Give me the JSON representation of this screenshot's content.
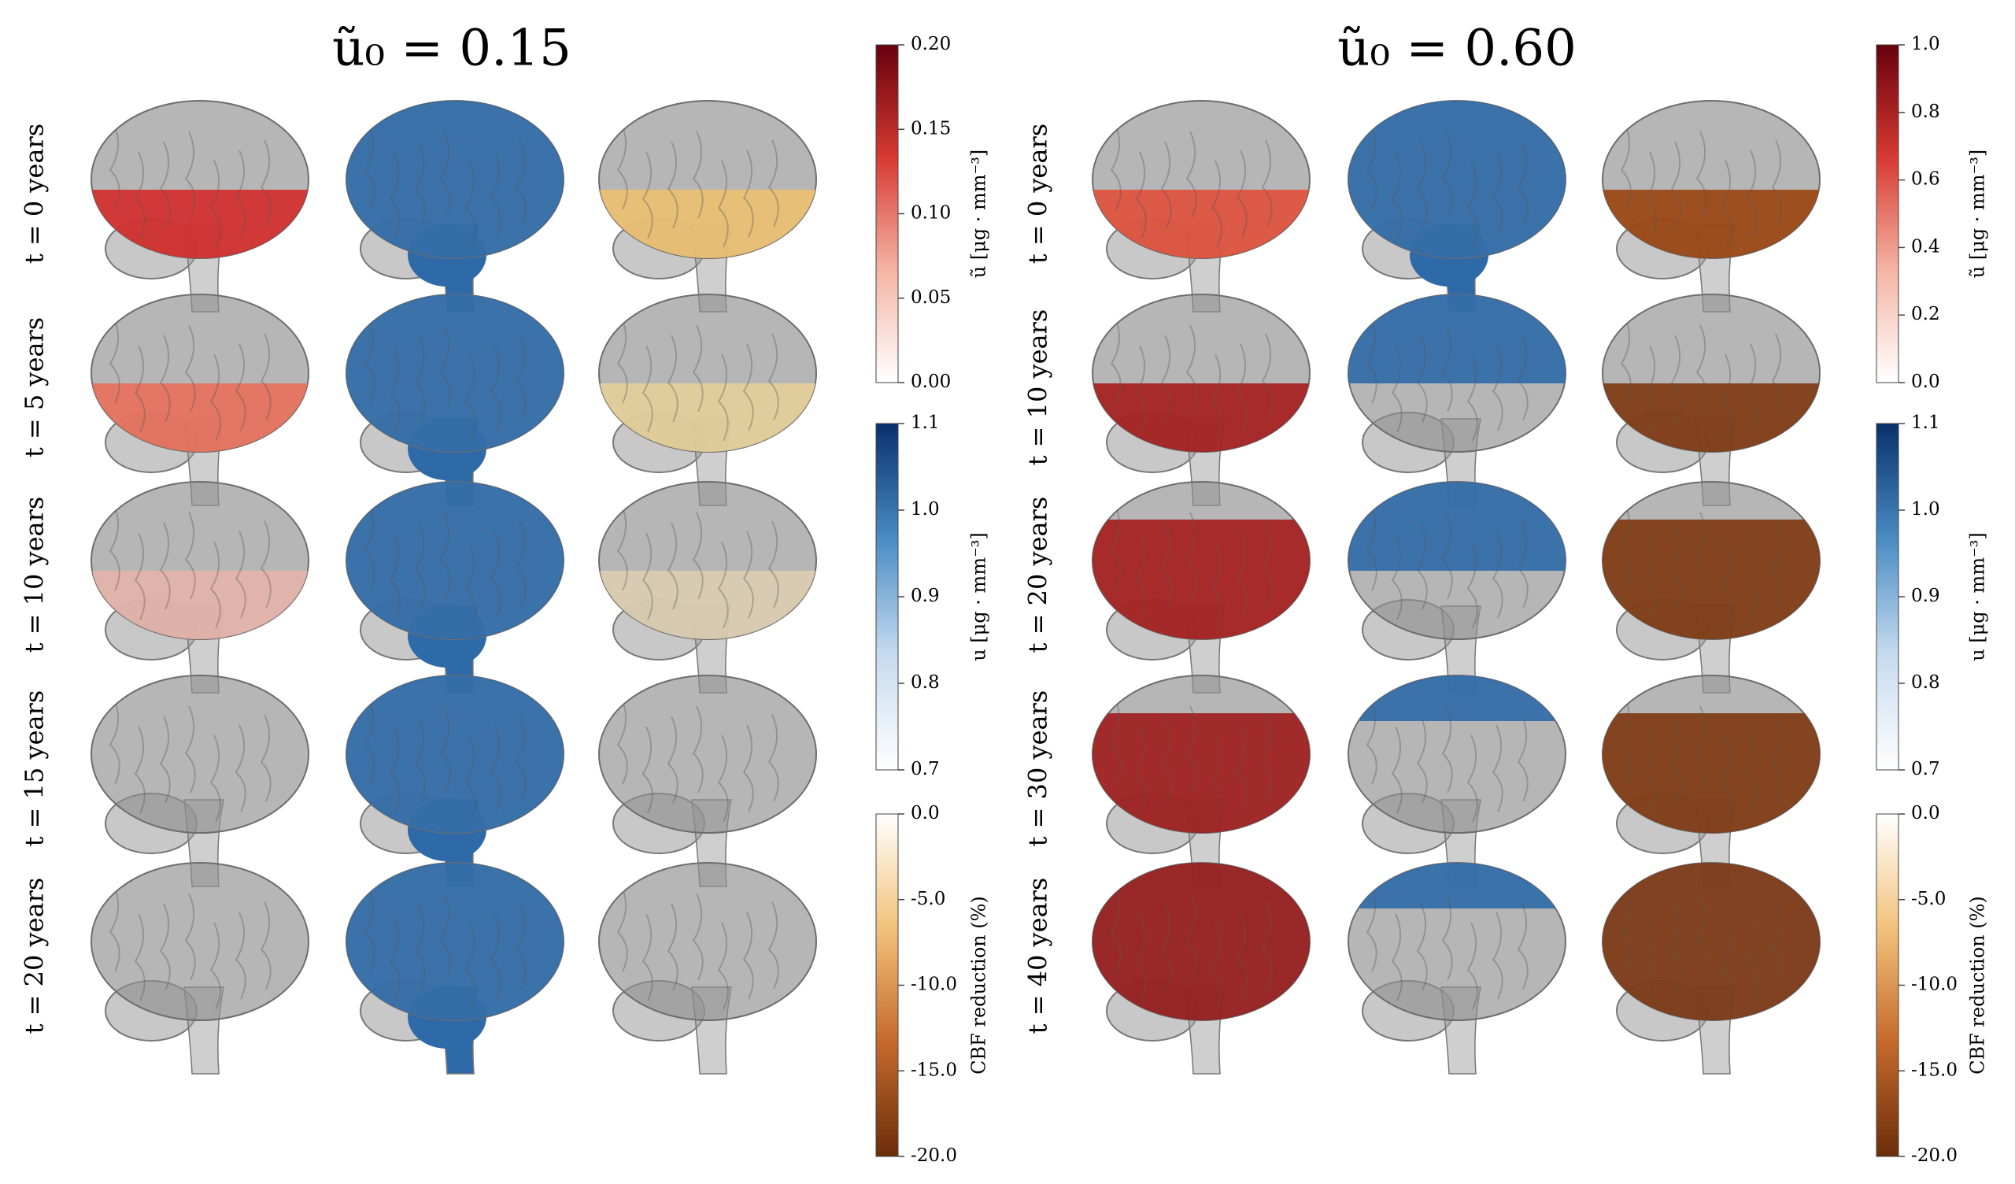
{
  "panels": [
    {
      "title": "ũ₀ = 0.15",
      "rows": [
        {
          "label": "t = 0 years",
          "cells": [
            {
              "color": "#d42a2a",
              "region": "lower"
            },
            {
              "color": "#2f6aa8",
              "region": "full"
            },
            {
              "color": "#ecc070",
              "region": "lower"
            }
          ]
        },
        {
          "label": "t = 5 years",
          "cells": [
            {
              "color": "#e8705a",
              "region": "lower"
            },
            {
              "color": "#2f6aa8",
              "region": "full"
            },
            {
              "color": "#e6cf98",
              "region": "lower"
            }
          ]
        },
        {
          "label": "t = 10 years",
          "cells": [
            {
              "color": "#e4b4aa",
              "region": "lower"
            },
            {
              "color": "#2f6aa8",
              "region": "full"
            },
            {
              "color": "#dccdb0",
              "region": "lower"
            }
          ]
        },
        {
          "label": "t = 15 years",
          "cells": [
            {
              "color": "#8a8a8a",
              "region": "none"
            },
            {
              "color": "#2f6aa8",
              "region": "full"
            },
            {
              "color": "#8a8a8a",
              "region": "none"
            }
          ]
        },
        {
          "label": "t = 20 years",
          "cells": [
            {
              "color": "#8a8a8a",
              "region": "none"
            },
            {
              "color": "#2f6aa8",
              "region": "full"
            },
            {
              "color": "#8a8a8a",
              "region": "none"
            }
          ]
        }
      ],
      "colorbars": [
        {
          "label": "ũ [μg · mm⁻³]",
          "lim": [
            0,
            0.2
          ],
          "colors": [
            "#ffffff",
            "#f4b4a4",
            "#d73a32",
            "#67000d"
          ],
          "ticks": [
            {
              "value": 0,
              "label": "0.00"
            },
            0.05,
            {
              "value": 0.1,
              "label": "0.10"
            },
            0.15,
            {
              "value": 0.2,
              "label": "0.20"
            }
          ]
        },
        {
          "label": "u [μg · mm⁻³]",
          "lim": [
            0.7,
            1.1
          ],
          "colors": [
            "#ffffff",
            "#c6dbef",
            "#4a8cc4",
            "#08306b"
          ],
          "ticks": [
            0.7,
            0.8,
            0.9,
            {
              "value": 1,
              "label": "1.0"
            },
            1.1
          ]
        },
        {
          "label": "CBF reduction (%)",
          "lim": [
            -20,
            0
          ],
          "colors": [
            "#6b2d0a",
            "#c56a2c",
            "#f2c27a",
            "#ffffff"
          ],
          "ticks": [
            {
              "value": -20,
              "label": "-20.0"
            },
            {
              "value": -15,
              "label": "-15.0"
            },
            {
              "value": -10,
              "label": "-10.0"
            },
            {
              "value": -5,
              "label": "-5.0"
            },
            {
              "value": 0,
              "label": "0.0"
            }
          ]
        }
      ]
    },
    {
      "title": "ũ₀ = 0.60",
      "rows": [
        {
          "label": "t = 0 years",
          "cells": [
            {
              "color": "#e0503a",
              "region": "lower"
            },
            {
              "color": "#2f6aa8",
              "region": "full"
            },
            {
              "color": "#9a4410",
              "region": "lower"
            }
          ]
        },
        {
          "label": "t = 10 years",
          "cells": [
            {
              "color": "#a51c1c",
              "region": "lower"
            },
            {
              "color": "#2f6aa8",
              "region": "upper"
            },
            {
              "color": "#7e3710",
              "region": "lower"
            }
          ]
        },
        {
          "label": "t = 20 years",
          "cells": [
            {
              "color": "#a51c1c",
              "region": "most"
            },
            {
              "color": "#2f6aa8",
              "region": "upper"
            },
            {
              "color": "#7e3710",
              "region": "most"
            }
          ]
        },
        {
          "label": "t = 30 years",
          "cells": [
            {
              "color": "#9e1b1b",
              "region": "most"
            },
            {
              "color": "#2f6aa8",
              "region": "top"
            },
            {
              "color": "#7e3710",
              "region": "most"
            }
          ]
        },
        {
          "label": "t = 40 years",
          "cells": [
            {
              "color": "#961a1a",
              "region": "full"
            },
            {
              "color": "#2f6aa8",
              "region": "top"
            },
            {
              "color": "#7a3510",
              "region": "full"
            }
          ]
        }
      ],
      "colorbars": [
        {
          "label": "ũ [μg · mm⁻³]",
          "lim": [
            0,
            1
          ],
          "colors": [
            "#ffffff",
            "#f4b4a4",
            "#d73a32",
            "#67000d"
          ],
          "ticks": [
            {
              "value": 0,
              "label": "0.0"
            },
            0.2,
            0.4,
            0.6,
            0.8,
            {
              "value": 1,
              "label": "1.0"
            }
          ]
        },
        {
          "label": "u [μg · mm⁻³]",
          "lim": [
            0.7,
            1.1
          ],
          "colors": [
            "#ffffff",
            "#c6dbef",
            "#4a8cc4",
            "#08306b"
          ],
          "ticks": [
            0.7,
            0.8,
            0.9,
            {
              "value": 1,
              "label": "1.0"
            },
            1.1
          ]
        },
        {
          "label": "CBF reduction (%)",
          "lim": [
            -20,
            0
          ],
          "colors": [
            "#6b2d0a",
            "#c56a2c",
            "#f2c27a",
            "#ffffff"
          ],
          "ticks": [
            {
              "value": -20,
              "label": "-20.0"
            },
            {
              "value": -15,
              "label": "-15.0"
            },
            {
              "value": -10,
              "label": "-10.0"
            },
            {
              "value": -5,
              "label": "-5.0"
            },
            {
              "value": 0,
              "label": "0.0"
            }
          ]
        }
      ]
    }
  ]
}
